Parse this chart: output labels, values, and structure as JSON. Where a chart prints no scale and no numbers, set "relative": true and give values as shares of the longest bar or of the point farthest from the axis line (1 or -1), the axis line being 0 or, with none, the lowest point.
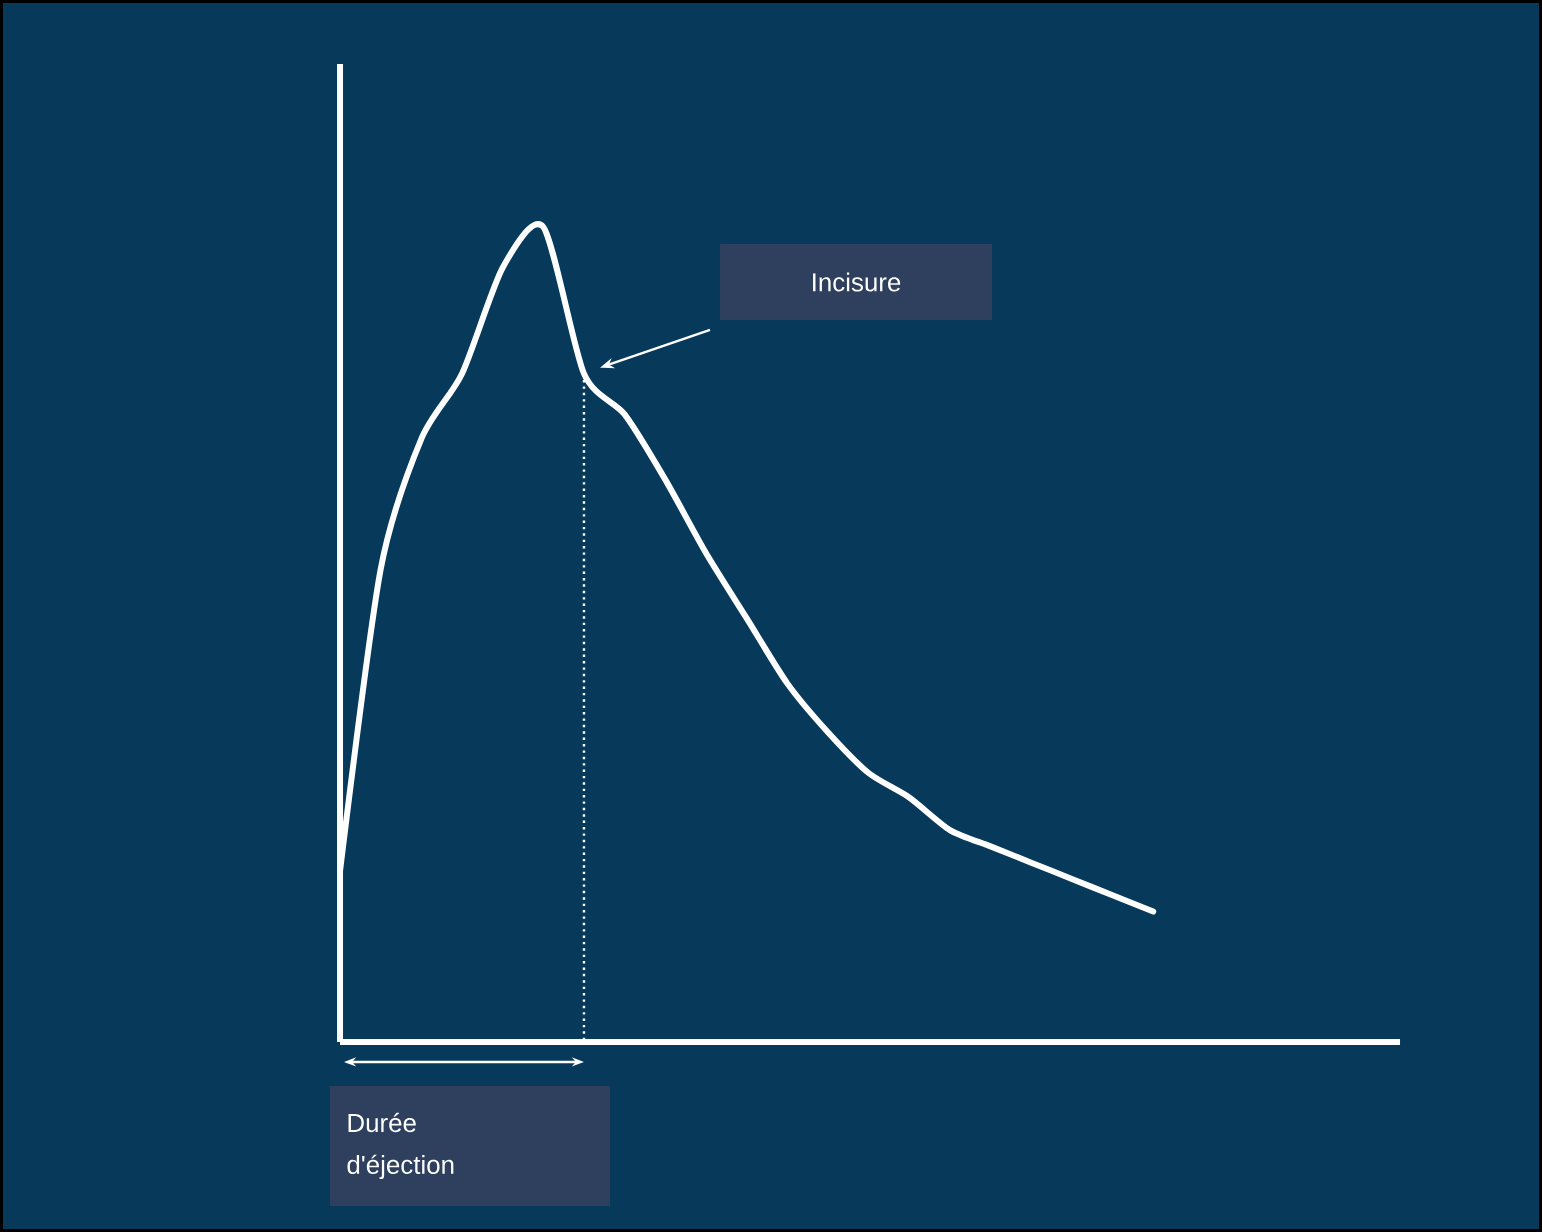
{
  "chart_data": {
    "type": "line",
    "relative": true,
    "categories": [
      null,
      null,
      null,
      null,
      null,
      null,
      null,
      null,
      null,
      null,
      null,
      null,
      null,
      null,
      null,
      null,
      null,
      null,
      null,
      null,
      null
    ],
    "series": [
      {
        "color": "#ffffff",
        "values": [
          0.21,
          0.58,
          0.74,
          0.82,
          0.95,
          1,
          0.82,
          0.77,
          0.69,
          0.6,
          0.52,
          0.44,
          0.38,
          0.33,
          0.3,
          0.26,
          0.24,
          0.22,
          0.2,
          0.18,
          0.16
        ]
      }
    ],
    "annotations": [
      "Incisure",
      "Durée d'éjection"
    ]
  }
}
